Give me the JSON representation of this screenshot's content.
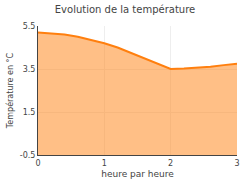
{
  "chart_data": {
    "type": "area",
    "title": "Evolution de la température",
    "xlabel": "heure par heure",
    "ylabel": "Température en °C",
    "x": [
      0,
      0.2,
      0.4,
      0.6,
      0.8,
      1.0,
      1.2,
      1.4,
      1.6,
      1.8,
      2.0,
      2.2,
      2.4,
      2.6,
      2.8,
      3.0
    ],
    "values": [
      5.2,
      5.15,
      5.1,
      5.0,
      4.85,
      4.7,
      4.5,
      4.25,
      4.0,
      3.75,
      3.5,
      3.52,
      3.55,
      3.6,
      3.68,
      3.75
    ],
    "xlim": [
      0,
      3
    ],
    "xticks": [
      0,
      1,
      2,
      3
    ],
    "ylim": [
      -0.5,
      5.5
    ],
    "yticks": [
      5.5,
      3.5,
      1.5,
      -0.5
    ],
    "grid": true
  }
}
